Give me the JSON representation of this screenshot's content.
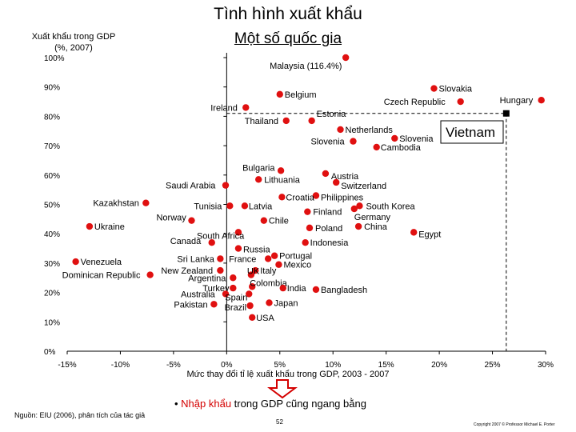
{
  "title": "Tình hình xuất khẩu",
  "subtitle": "Một số quốc gia",
  "source": "Nguồn: EIU (2006), phân tích của tác giả",
  "page_number": "52",
  "copyright": "Copyright 2007 © Professor Michael E. Porter",
  "bullet": {
    "prefix": "• ",
    "highlight": "Nhập khẩu",
    "rest": " trong GDP cũng ngang bằng"
  },
  "colors": {
    "point": "#e01010",
    "text": "#000000",
    "highlight": "#d40000",
    "arrow": "#d40000"
  },
  "chart_data": {
    "type": "scatter",
    "ylabel": "Xuất khẩu trong GDP\n(%, 2007)",
    "xlabel": "Mức thay đổi tỉ lệ xuất khẩu trong GDP, 2003 - 2007",
    "xlim": [
      -15,
      30
    ],
    "ylim": [
      0,
      100
    ],
    "xticks": [
      -15,
      -10,
      -5,
      0,
      5,
      10,
      15,
      20,
      25,
      30
    ],
    "xtick_labels": [
      "-15%",
      "-10%",
      "-5%",
      "0%",
      "5%",
      "10%",
      "15%",
      "20%",
      "25%",
      "30%"
    ],
    "yticks": [
      0,
      10,
      20,
      30,
      40,
      50,
      60,
      70,
      80,
      90,
      100
    ],
    "ytick_labels": [
      "0%",
      "10%",
      "20%",
      "30%",
      "40%",
      "50%",
      "60%",
      "70%",
      "80%",
      "90%",
      "100%"
    ],
    "reference_line": {
      "x": 26.3,
      "label": "Vietnam",
      "y": 81
    },
    "points": [
      {
        "name": "Malaysia (116.4%)",
        "x": 11.2,
        "y": 100
      },
      {
        "name": "Slovakia",
        "x": 19.5,
        "y": 89.5
      },
      {
        "name": "Belgium",
        "x": 5.0,
        "y": 87.5
      },
      {
        "name": "Hungary",
        "x": 29.6,
        "y": 85.5
      },
      {
        "name": "Czech Republic",
        "x": 22.0,
        "y": 85.0
      },
      {
        "name": "Ireland",
        "x": 1.8,
        "y": 83.0
      },
      {
        "name": "Estonia",
        "x": 8.0,
        "y": 78.5
      },
      {
        "name": "Thailand",
        "x": 5.6,
        "y": 78.5
      },
      {
        "name": "Netherlands",
        "x": 10.7,
        "y": 75.5
      },
      {
        "name": "Slovenia",
        "x": 15.8,
        "y": 72.5
      },
      {
        "name": "Slovenia",
        "x": 11.9,
        "y": 71.5
      },
      {
        "name": "Cambodia",
        "x": 14.1,
        "y": 69.5
      },
      {
        "name": "Bulgaria",
        "x": 5.1,
        "y": 61.5
      },
      {
        "name": "Austria",
        "x": 9.3,
        "y": 60.5
      },
      {
        "name": "Lithuania",
        "x": 3.0,
        "y": 58.5
      },
      {
        "name": "Switzerland",
        "x": 10.3,
        "y": 57.5
      },
      {
        "name": "Saudi Arabia",
        "x": -0.1,
        "y": 56.5
      },
      {
        "name": "Philippines",
        "x": 8.4,
        "y": 53.0
      },
      {
        "name": "Croatia",
        "x": 5.2,
        "y": 52.5
      },
      {
        "name": "Kazakhstan",
        "x": -7.6,
        "y": 50.5
      },
      {
        "name": "Tunisia",
        "x": 0.3,
        "y": 49.5
      },
      {
        "name": "South Korea",
        "x": 12.5,
        "y": 49.5
      },
      {
        "name": "Latvia",
        "x": 1.7,
        "y": 49.5
      },
      {
        "name": "Germany",
        "x": 12.0,
        "y": 48.5
      },
      {
        "name": "Finland",
        "x": 7.6,
        "y": 47.5
      },
      {
        "name": "Norway",
        "x": -3.3,
        "y": 44.5
      },
      {
        "name": "Chile",
        "x": 3.5,
        "y": 44.5
      },
      {
        "name": "Ukraine",
        "x": -12.9,
        "y": 42.5
      },
      {
        "name": "China",
        "x": 12.4,
        "y": 42.5
      },
      {
        "name": "Poland",
        "x": 7.8,
        "y": 42.0
      },
      {
        "name": "South Africa",
        "x": 1.1,
        "y": 40.5
      },
      {
        "name": "Egypt",
        "x": 17.6,
        "y": 40.5
      },
      {
        "name": "Canada",
        "x": -1.4,
        "y": 37.0
      },
      {
        "name": "Indonesia",
        "x": 7.4,
        "y": 37.0
      },
      {
        "name": "Russia",
        "x": 1.1,
        "y": 35.0
      },
      {
        "name": "Portugal",
        "x": 4.5,
        "y": 32.5
      },
      {
        "name": "Sri Lanka",
        "x": -0.6,
        "y": 31.5
      },
      {
        "name": "France",
        "x": 3.9,
        "y": 31.5
      },
      {
        "name": "Venezuela",
        "x": -14.2,
        "y": 30.5
      },
      {
        "name": "Mexico",
        "x": 4.9,
        "y": 29.5
      },
      {
        "name": "New Zealand",
        "x": -0.6,
        "y": 27.5
      },
      {
        "name": "Italy",
        "x": 2.7,
        "y": 27.5
      },
      {
        "name": "Dominican Republic",
        "x": -7.2,
        "y": 26.0
      },
      {
        "name": "UK",
        "x": 2.3,
        "y": 26.0
      },
      {
        "name": "Argentina",
        "x": 0.6,
        "y": 25.0
      },
      {
        "name": "Colombia",
        "x": 2.4,
        "y": 22.0
      },
      {
        "name": "Turkey",
        "x": 0.6,
        "y": 21.5
      },
      {
        "name": "India",
        "x": 5.3,
        "y": 21.5
      },
      {
        "name": "Bangladesh",
        "x": 8.4,
        "y": 21.0
      },
      {
        "name": "Australia",
        "x": -0.1,
        "y": 19.5
      },
      {
        "name": "Spain",
        "x": 2.1,
        "y": 19.5
      },
      {
        "name": "Japan",
        "x": 4.0,
        "y": 16.5
      },
      {
        "name": "Pakistan",
        "x": -1.2,
        "y": 16.0
      },
      {
        "name": "Brazil",
        "x": 2.2,
        "y": 15.5
      },
      {
        "name": "USA",
        "x": 2.4,
        "y": 11.5
      }
    ]
  }
}
